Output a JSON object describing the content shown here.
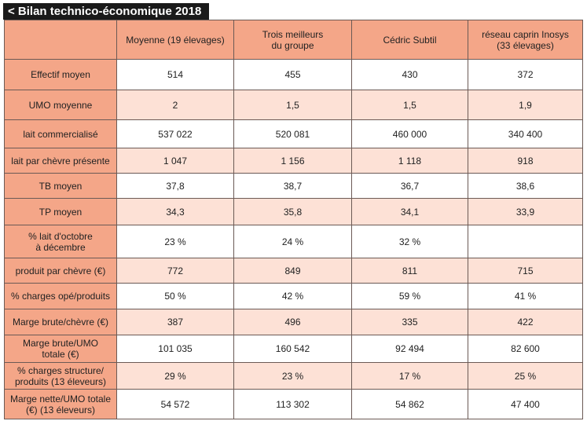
{
  "header": {
    "title": "< Bilan technico-économique 2018"
  },
  "table": {
    "columns": [
      "Moyenne (19 élevages)",
      "Trois meilleurs\ndu groupe",
      "Cédric Subtil",
      "réseau caprin Inosys\n(33 élevages)"
    ],
    "rows": [
      [
        "Effectif moyen",
        "514",
        "455",
        "430",
        "372"
      ],
      [
        "UMO moyenne",
        "2",
        "1,5",
        "1,5",
        "1,9"
      ],
      [
        "lait commercialisé",
        "537 022",
        "520 081",
        "460 000",
        "340 400"
      ],
      [
        "lait par chèvre présente",
        "1 047",
        "1 156",
        "1 118",
        "918"
      ],
      [
        "TB moyen",
        "37,8",
        "38,7",
        "36,7",
        "38,6"
      ],
      [
        "TP moyen",
        "34,3",
        "35,8",
        "34,1",
        "33,9"
      ],
      [
        "% lait d'octobre\nà décembre",
        "23 %",
        "24 %",
        "32 %",
        null
      ],
      [
        "produit par chèvre (€)",
        "772",
        "849",
        "811",
        "715"
      ],
      [
        "% charges opé/produits",
        "50 %",
        "42 %",
        "59 %",
        "41 %"
      ],
      [
        "Marge brute/chèvre (€)",
        "387",
        "496",
        "335",
        "422"
      ],
      [
        "Marge brute/UMO\ntotale (€)",
        "101 035",
        "160 542",
        "92 494",
        "82 600"
      ],
      [
        "% charges structure/\nproduits (13 éleveurs)",
        "29 %",
        "23 %",
        "17 %",
        "25 %"
      ],
      [
        "Marge nette/UMO totale\n(€) (13 éleveurs)",
        "54 572",
        "113 302",
        "54 862",
        "47 400"
      ]
    ]
  }
}
